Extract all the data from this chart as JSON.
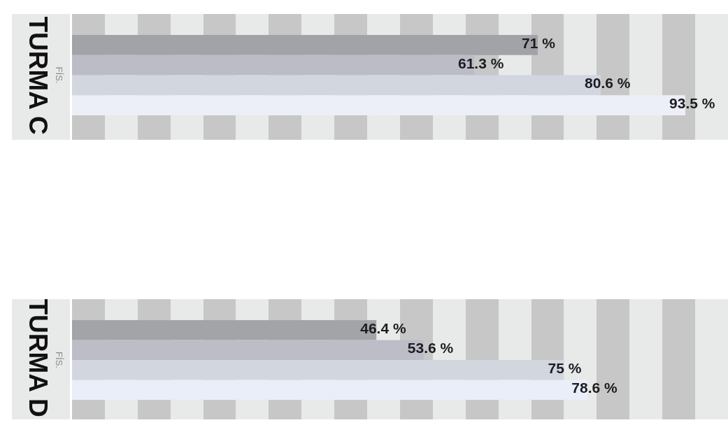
{
  "chart_data": [
    {
      "type": "bar",
      "orientation": "horizontal",
      "title": "TURMA C",
      "ylabel": "FÍS.",
      "categories": [
        null,
        null,
        null,
        null
      ],
      "tick_labels": false,
      "values": [
        71,
        61.3,
        80.6,
        93.5
      ],
      "colors": [
        "#a2a3a7",
        "#bbbcc6",
        "#d2d6df",
        "#eceff7"
      ],
      "value_labels": [
        "71 %",
        "61.3 %",
        "80.6 %",
        "93.5 %"
      ]
    },
    {
      "type": "bar",
      "orientation": "horizontal",
      "title": "TURMA D",
      "ylabel": "FÍS.",
      "categories": [
        null,
        null,
        null,
        null
      ],
      "tick_labels": false,
      "values": [
        46.4,
        53.6,
        75,
        78.6
      ],
      "colors": [
        "#a3a4a8",
        "#bdbdc8",
        "#d2d7df",
        "#eaeef8"
      ],
      "value_labels": [
        "46.4 %",
        "53.6 %",
        "75 %",
        "78.6 %"
      ]
    }
  ]
}
